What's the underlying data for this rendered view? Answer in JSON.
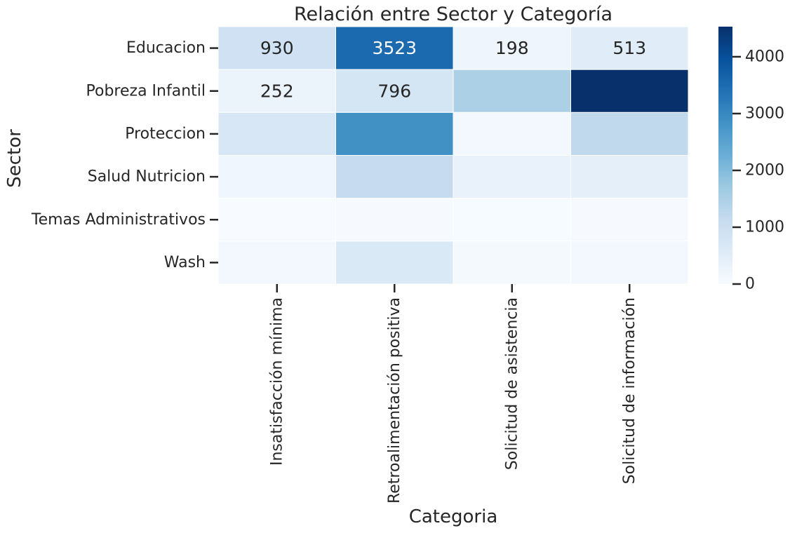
{
  "chart_data": {
    "type": "heatmap",
    "title": "Relación entre Sector y Categoría",
    "xlabel": "Categoria",
    "ylabel": "Sector",
    "x_categories": [
      "Insatisfacción mínima",
      "Retroalimentación positiva",
      "Solicitud  de asistencia",
      "Solicitud de información"
    ],
    "y_categories": [
      "Educacion",
      "Pobreza Infantil",
      "Proteccion",
      "Salud Nutricion",
      "Temas Administrativos",
      "Wash"
    ],
    "values": [
      [
        930,
        3523,
        198,
        513
      ],
      [
        252,
        796,
        1500,
        4530
      ],
      [
        700,
        2850,
        120,
        1200
      ],
      [
        170,
        1130,
        320,
        420
      ],
      [
        10,
        20,
        15,
        30
      ],
      [
        90,
        650,
        60,
        110
      ]
    ],
    "cell_labels": [
      [
        "930",
        "3523",
        "198",
        "513"
      ],
      [
        "252",
        "796",
        "",
        ""
      ],
      [
        "",
        "",
        "",
        ""
      ],
      [
        "",
        "",
        "",
        ""
      ],
      [
        "",
        "",
        "",
        ""
      ],
      [
        "",
        "",
        "",
        ""
      ]
    ],
    "colormap": "Blues",
    "colors": [
      "#f7fbff",
      "#deebf7",
      "#c6dbef",
      "#9ecae1",
      "#6baed6",
      "#4292c6",
      "#2171b5",
      "#08519c",
      "#08306b"
    ],
    "vmin": 0,
    "vmax": 4530,
    "colorbar_ticks": [
      0,
      1000,
      2000,
      3000,
      4000
    ],
    "colorbar_tick_labels": [
      "0",
      "1000",
      "2000",
      "3000",
      "4000"
    ]
  }
}
